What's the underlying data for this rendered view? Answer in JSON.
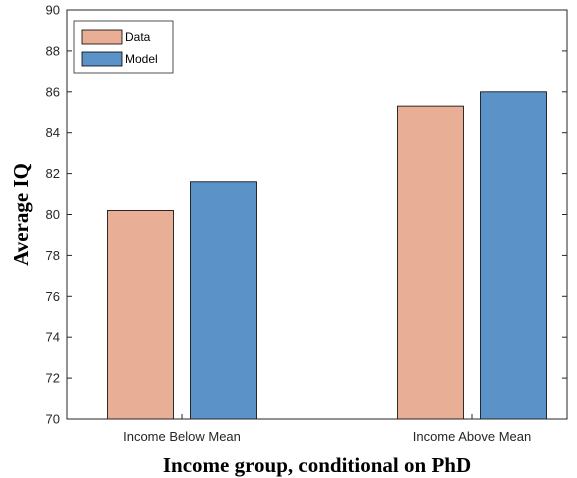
{
  "chart_data": {
    "type": "bar",
    "categories": [
      "Income Below Mean",
      "Income Above Mean"
    ],
    "series": [
      {
        "name": "Data",
        "values": [
          80.2,
          85.3
        ],
        "color": "#e8af96"
      },
      {
        "name": "Model",
        "values": [
          81.6,
          86.0
        ],
        "color": "#5b93c9"
      }
    ],
    "xlabel": "Income group, conditional on PhD",
    "ylabel": "Average IQ",
    "ylim": [
      70,
      90
    ],
    "yticks": [
      "70",
      "72",
      "74",
      "76",
      "78",
      "80",
      "82",
      "84",
      "86",
      "88",
      "90"
    ],
    "grid": false,
    "legend_position": "top-left"
  }
}
